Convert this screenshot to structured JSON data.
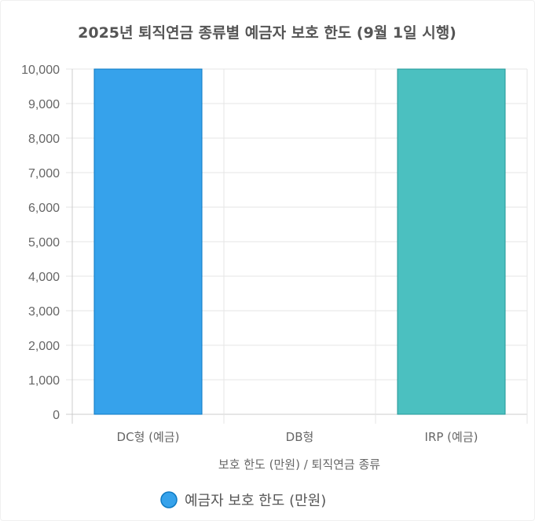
{
  "chart_data": {
    "type": "bar",
    "title": "2025년 퇴직연금 종류별 예금자 보호 한도 (9월 1일 시행)",
    "xlabel": "보호 한도 (만원) / 퇴직연금 종류",
    "ylabel": "",
    "categories": [
      "DC형 (예금)",
      "DB형",
      "IRP (예금)"
    ],
    "series": [
      {
        "name": "예금자 보호 한도 (만원)",
        "values": [
          10000,
          0,
          10000
        ],
        "colors": [
          "#36A2EB",
          "#36A2EB",
          "#4BC0C0"
        ]
      }
    ],
    "ylim": [
      0,
      10000
    ],
    "yticks": [
      "0",
      "1,000",
      "2,000",
      "3,000",
      "4,000",
      "5,000",
      "6,000",
      "7,000",
      "8,000",
      "9,000",
      "10,000"
    ],
    "grid": true,
    "legend_position": "bottom"
  }
}
